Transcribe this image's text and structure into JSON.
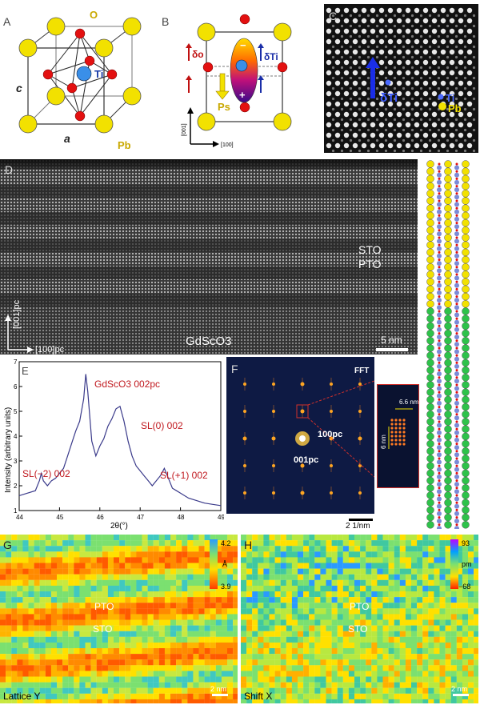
{
  "panels": {
    "a": {
      "label": "A",
      "atom_o": "O",
      "atom_ti": "Ti",
      "atom_pb": "Pb",
      "axis_c": "c",
      "axis_a": "a"
    },
    "b": {
      "label": "B",
      "delta_o": "δo",
      "delta_ti": "δTi",
      "ps": "Ps",
      "plus": "+",
      "minus": "−",
      "axis_001": "[001]",
      "axis_100": "[100]"
    },
    "c": {
      "label": "C",
      "delta_ti": "δTi",
      "ti": "Ti",
      "pb": "Pb"
    },
    "d": {
      "label": "D",
      "sto": "STO",
      "pto": "PTO",
      "substrate": "GdScO3",
      "axis_001": "[001]pc",
      "axis_100": "[100]pc",
      "scale": "5 nm"
    },
    "e": {
      "label": "E",
      "annotations": [
        "GdScO3  002pc",
        "SL(0)  002",
        "SL(−2)  002",
        "SL(+1)  002"
      ]
    },
    "f": {
      "label": "F",
      "fft": "FFT",
      "spot_100": "100pc",
      "spot_001": "001pc",
      "inset_6_6": "6.6 nm",
      "inset_6": "6 nm",
      "scale": "2 1/nm"
    },
    "g": {
      "label": "G",
      "caption": "Lattice Y",
      "cb_max": "4.2",
      "cb_unit": "Å",
      "cb_min": "3.9",
      "pto": "PTO",
      "sto": "STO",
      "scale": "2 nm"
    },
    "h": {
      "label": "H",
      "caption": "Shift X",
      "cb_max": "93",
      "cb_unit": "pm",
      "cb_min": "−68",
      "pto": "PTO",
      "sto": "STO",
      "scale": "2 nm"
    }
  },
  "chart_data": {
    "type": "line",
    "title": "",
    "xlabel": "2θ(°)",
    "ylabel": "Intensity (arbitrary units)",
    "xlim": [
      44,
      49
    ],
    "ylim": [
      1,
      7
    ],
    "xticks": [
      "44",
      "45",
      "46",
      "47",
      "48",
      "49"
    ],
    "yticks": [
      "1",
      "2",
      "3",
      "4",
      "5",
      "6",
      "7"
    ],
    "grid": false,
    "legend": "none",
    "series": [
      {
        "x": [
          44.0,
          44.2,
          44.4,
          44.5,
          44.55,
          44.6,
          44.7,
          44.8,
          44.9,
          45.0,
          45.1,
          45.2,
          45.3,
          45.4,
          45.5,
          45.6,
          45.65,
          45.7,
          45.75,
          45.8,
          45.9,
          46.0,
          46.1,
          46.2,
          46.3,
          46.4,
          46.5,
          46.6,
          46.7,
          46.8,
          46.9,
          47.0,
          47.1,
          47.2,
          47.3,
          47.4,
          47.5,
          47.6,
          47.7,
          47.8,
          47.9,
          48.0,
          48.2,
          48.4,
          48.6,
          48.8,
          49.0
        ],
        "y": [
          1.6,
          1.7,
          1.8,
          2.2,
          2.5,
          2.2,
          2.0,
          2.2,
          2.3,
          2.5,
          2.7,
          3.2,
          3.7,
          4.2,
          4.6,
          5.5,
          6.5,
          5.8,
          4.8,
          3.8,
          3.2,
          3.6,
          3.9,
          4.4,
          4.7,
          5.1,
          5.2,
          4.6,
          3.8,
          3.2,
          2.8,
          2.6,
          2.4,
          2.2,
          2.0,
          2.2,
          2.4,
          2.7,
          2.3,
          1.9,
          1.8,
          1.7,
          1.5,
          1.4,
          1.3,
          1.25,
          1.2
        ]
      }
    ]
  }
}
